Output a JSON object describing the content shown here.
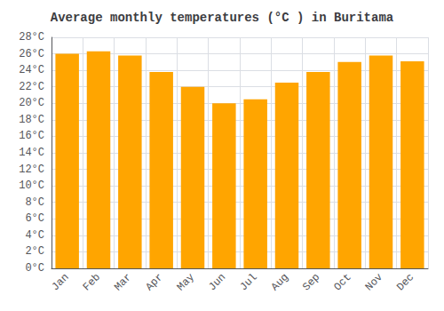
{
  "chart_data": {
    "type": "bar",
    "title": "Average monthly temperatures (°C ) in Buritama",
    "categories": [
      "Jan",
      "Feb",
      "Mar",
      "Apr",
      "May",
      "Jun",
      "Jul",
      "Aug",
      "Sep",
      "Oct",
      "Nov",
      "Dec"
    ],
    "values": [
      26.0,
      26.3,
      25.8,
      23.8,
      22.0,
      20.0,
      20.5,
      22.5,
      23.8,
      25.0,
      25.8,
      25.1
    ],
    "color": "#FFA500",
    "ylim": [
      0,
      28
    ],
    "yticks": [
      {
        "value": 0,
        "label": "0°C"
      },
      {
        "value": 2,
        "label": "2°C"
      },
      {
        "value": 4,
        "label": "4°C"
      },
      {
        "value": 6,
        "label": "6°C"
      },
      {
        "value": 8,
        "label": "8°C"
      },
      {
        "value": 10,
        "label": "10°C"
      },
      {
        "value": 12,
        "label": "12°C"
      },
      {
        "value": 14,
        "label": "14°C"
      },
      {
        "value": 16,
        "label": "16°C"
      },
      {
        "value": 18,
        "label": "18°C"
      },
      {
        "value": 20,
        "label": "20°C"
      },
      {
        "value": 22,
        "label": "22°C"
      },
      {
        "value": 24,
        "label": "24°C"
      },
      {
        "value": 26,
        "label": "26°C"
      },
      {
        "value": 28,
        "label": "28°C"
      }
    ],
    "grid": true
  }
}
